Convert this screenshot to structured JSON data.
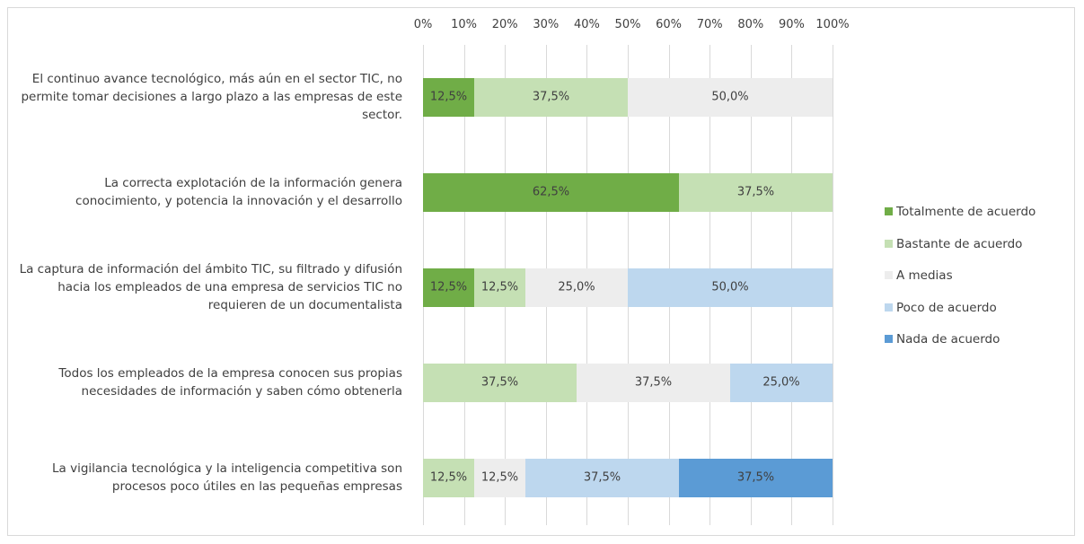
{
  "chart_data": {
    "type": "stacked-bar-horizontal",
    "categories": [
      "El continuo avance tecnológico, más aún en el sector TIC, no permite tomar decisiones a largo plazo a las empresas de este sector.",
      "La correcta explotación de la información genera conocimiento, y potencia la innovación y el desarrollo",
      "La captura de información del ámbito TIC, su filtrado y difusión hacia los empleados de una empresa de servicios TIC no requieren de un documentalista",
      "Todos los empleados de la empresa conocen sus propias necesidades de información y saben cómo obtenerla",
      "La vigilancia tecnológica y la inteligencia competitiva son procesos poco útiles en las pequeñas empresas"
    ],
    "series": [
      {
        "name": "Totalmente de acuerdo",
        "color": "#70ad47",
        "values": [
          12.5,
          62.5,
          12.5,
          null,
          null
        ],
        "value_labels": [
          "12,5%",
          "62,5%",
          "12,5%",
          null,
          null
        ]
      },
      {
        "name": "Bastante de acuerdo",
        "color": "#c5e0b4",
        "values": [
          37.5,
          37.5,
          12.5,
          37.5,
          12.5
        ],
        "value_labels": [
          "37,5%",
          "37,5%",
          "12,5%",
          "37,5%",
          "12,5%"
        ]
      },
      {
        "name": "A medias",
        "color": "#ededed",
        "values": [
          50,
          null,
          25,
          37.5,
          12.5
        ],
        "value_labels": [
          "50,0%",
          null,
          "25,0%",
          "37,5%",
          "12,5%"
        ]
      },
      {
        "name": "Poco de acuerdo",
        "color": "#bdd7ee",
        "values": [
          null,
          null,
          50,
          25,
          37.5
        ],
        "value_labels": [
          null,
          null,
          "50,0%",
          "25,0%",
          "37,5%"
        ]
      },
      {
        "name": "Nada de acuerdo",
        "color": "#5b9bd5",
        "values": [
          null,
          null,
          null,
          null,
          37.5
        ],
        "value_labels": [
          null,
          null,
          null,
          null,
          "37,5%"
        ]
      }
    ],
    "xlim": [
      0,
      100
    ],
    "xticks": [
      {
        "value": 0,
        "label": "0%"
      },
      {
        "value": 10,
        "label": "10%"
      },
      {
        "value": 20,
        "label": "20%"
      },
      {
        "value": 30,
        "label": "30%"
      },
      {
        "value": 40,
        "label": "40%"
      },
      {
        "value": 50,
        "label": "50%"
      },
      {
        "value": 60,
        "label": "60%"
      },
      {
        "value": 70,
        "label": "70%"
      },
      {
        "value": 80,
        "label": "80%"
      },
      {
        "value": 90,
        "label": "90%"
      },
      {
        "value": 100,
        "label": "100%"
      }
    ],
    "grid": true,
    "legend": "right"
  }
}
